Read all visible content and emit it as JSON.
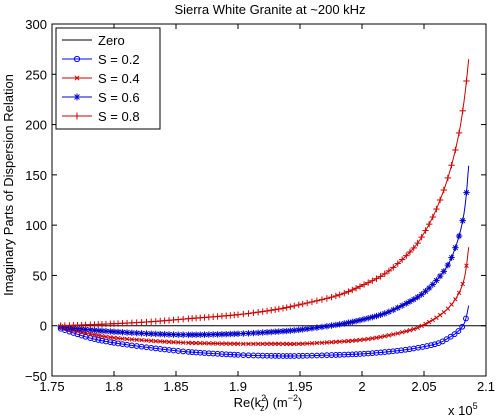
{
  "chart_data": {
    "type": "line",
    "title": "Sierra White Granite at ~200 kHz",
    "xlabel": "Re(k_z^2) (m^-2)",
    "xlabel_main": "Re(k",
    "xlabel_sup": "2",
    "xlabel_sub": "z",
    "xlabel_tail": ") (m",
    "xlabel_tail_sup": "−2",
    "xlabel_close": ")",
    "ylabel": "Imaginary Parts of Dispersion Relation",
    "x_exponent_label": "x 10",
    "x_exponent_power": "5",
    "xlim": [
      1.75,
      2.1
    ],
    "ylim": [
      -50,
      300
    ],
    "xticks": [
      1.75,
      1.8,
      1.85,
      1.9,
      1.95,
      2.0,
      2.05,
      2.1
    ],
    "xtick_labels": [
      "1.75",
      "1.8",
      "1.85",
      "1.9",
      "1.95",
      "2",
      "2.05",
      "2.1"
    ],
    "yticks": [
      -50,
      0,
      50,
      100,
      150,
      200,
      250,
      300
    ],
    "ytick_labels": [
      "−50",
      "0",
      "50",
      "100",
      "150",
      "200",
      "250",
      "300"
    ],
    "legend_position": "top-left",
    "series": [
      {
        "name": "Zero",
        "color": "#000000",
        "marker": "none",
        "x": [
          1.757,
          2.1
        ],
        "y": [
          0,
          0
        ]
      },
      {
        "name": "S = 0.2",
        "color": "#0000ff",
        "marker": "circle",
        "x": [
          1.757,
          1.78,
          1.8,
          1.83,
          1.86,
          1.9,
          1.93,
          1.95,
          1.98,
          2.0,
          2.02,
          2.04,
          2.06,
          2.07,
          2.078,
          2.083,
          2.086
        ],
        "y": [
          -3,
          -12,
          -17,
          -22,
          -26,
          -29,
          -30,
          -30,
          -29,
          -28,
          -26,
          -23,
          -18,
          -12,
          -5,
          4,
          20
        ]
      },
      {
        "name": "S = 0.4",
        "color": "#cc0000",
        "marker": "x",
        "x": [
          1.757,
          1.78,
          1.8,
          1.83,
          1.86,
          1.9,
          1.93,
          1.95,
          1.98,
          2.0,
          2.02,
          2.04,
          2.05,
          2.06,
          2.07,
          2.078,
          2.083,
          2.086
        ],
        "y": [
          -2,
          -8,
          -12,
          -15,
          -17,
          -18,
          -18,
          -18,
          -16,
          -14,
          -10,
          -4,
          1,
          8,
          18,
          32,
          50,
          78
        ]
      },
      {
        "name": "S = 0.6",
        "color": "#0000cc",
        "marker": "star",
        "x": [
          1.757,
          1.78,
          1.8,
          1.83,
          1.86,
          1.9,
          1.93,
          1.95,
          1.98,
          2.0,
          2.02,
          2.04,
          2.05,
          2.06,
          2.07,
          2.078,
          2.083,
          2.086
        ],
        "y": [
          -1,
          -4,
          -6,
          -8,
          -9,
          -8,
          -6,
          -4,
          1,
          6,
          13,
          25,
          33,
          45,
          62,
          88,
          118,
          159
        ]
      },
      {
        "name": "S = 0.8",
        "color": "#cc0000",
        "marker": "plus",
        "x": [
          1.757,
          1.78,
          1.8,
          1.83,
          1.86,
          1.9,
          1.93,
          1.95,
          1.98,
          2.0,
          2.02,
          2.04,
          2.05,
          2.06,
          2.07,
          2.078,
          2.083,
          2.086
        ],
        "y": [
          0,
          1,
          2,
          4,
          7,
          11,
          16,
          21,
          30,
          40,
          53,
          75,
          92,
          116,
          150,
          190,
          230,
          265
        ]
      }
    ]
  }
}
